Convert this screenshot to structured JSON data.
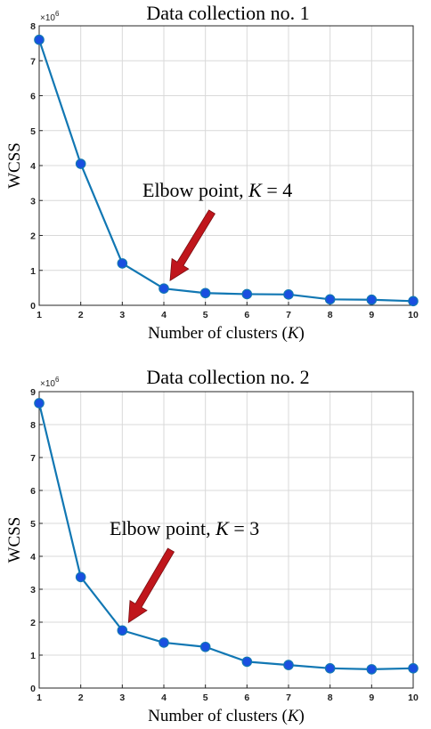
{
  "chart_data": [
    {
      "type": "line",
      "title": "Data collection no. 1",
      "xlabel": "Number of clusters (K)",
      "xlabel_prefix": "Number of clusters (",
      "xlabel_var": "K",
      "xlabel_suffix": ")",
      "ylabel": "WCSS",
      "y_exponent_base": "×10",
      "y_exponent_power": "6",
      "x": [
        1,
        2,
        3,
        4,
        5,
        6,
        7,
        8,
        9,
        10
      ],
      "series": [
        {
          "values": [
            7.6,
            4.05,
            1.2,
            0.48,
            0.35,
            0.32,
            0.31,
            0.17,
            0.16,
            0.12
          ],
          "color": "#1177b3",
          "marker_color": "#1a4fe0"
        }
      ],
      "xlim": [
        1,
        10
      ],
      "ylim": [
        0,
        8
      ],
      "xticks": [
        1,
        2,
        3,
        4,
        5,
        6,
        7,
        8,
        9,
        10
      ],
      "yticks": [
        0,
        1,
        2,
        3,
        4,
        5,
        6,
        7,
        8
      ],
      "grid": true,
      "annotation": {
        "prefix": "Elbow point, ",
        "var": "K",
        "suffix": " = 4",
        "target_x": 4,
        "target_y": 0.48,
        "arrow_color": "#c0161c"
      }
    },
    {
      "type": "line",
      "title": "Data collection no. 2",
      "xlabel": "Number of clusters (K)",
      "xlabel_prefix": "Number of clusters (",
      "xlabel_var": "K",
      "xlabel_suffix": ")",
      "ylabel": "WCSS",
      "y_exponent_base": "×10",
      "y_exponent_power": "6",
      "x": [
        1,
        2,
        3,
        4,
        5,
        6,
        7,
        8,
        9,
        10
      ],
      "series": [
        {
          "values": [
            8.65,
            3.37,
            1.75,
            1.38,
            1.25,
            0.8,
            0.7,
            0.6,
            0.57,
            0.6
          ],
          "color": "#1177b3",
          "marker_color": "#1a4fe0"
        }
      ],
      "xlim": [
        1,
        10
      ],
      "ylim": [
        0,
        9
      ],
      "xticks": [
        1,
        2,
        3,
        4,
        5,
        6,
        7,
        8,
        9,
        10
      ],
      "yticks": [
        0,
        1,
        2,
        3,
        4,
        5,
        6,
        7,
        8,
        9
      ],
      "grid": true,
      "annotation": {
        "prefix": "Elbow point, ",
        "var": "K",
        "suffix": " = 3",
        "target_x": 3,
        "target_y": 1.75,
        "arrow_color": "#c0161c"
      }
    }
  ]
}
